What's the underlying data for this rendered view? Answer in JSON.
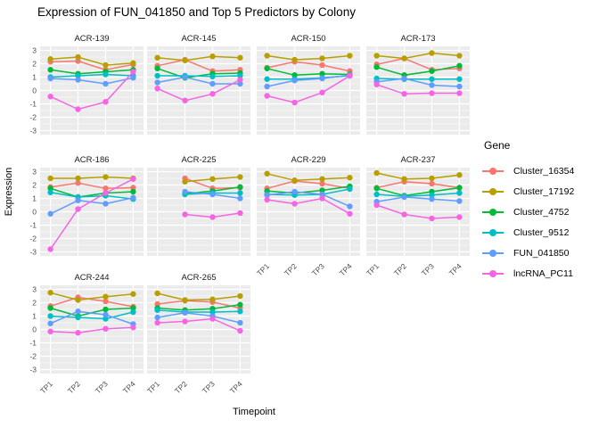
{
  "chart_data": {
    "type": "line",
    "title": "Expression of FUN_041850 and Top 5 Predictors by Colony",
    "xlabel": "Timepoint",
    "ylabel": "Expression",
    "legend_title": "Gene",
    "legend_position": "right",
    "x_categories": [
      "TP1",
      "TP2",
      "TP3",
      "TP4"
    ],
    "y_ticks": [
      3,
      2,
      1,
      0,
      -1,
      -2,
      -3
    ],
    "ylim": [
      -3.3,
      3.3
    ],
    "grid": "on",
    "panel_background": "#EBEBEB",
    "grid_color": "#FFFFFF",
    "tick_label_color": "#4D4D4D",
    "genes": [
      {
        "name": "Cluster_16354",
        "color": "#F8766D"
      },
      {
        "name": "Cluster_17192",
        "color": "#B79F00"
      },
      {
        "name": "Cluster_4752",
        "color": "#00BA38"
      },
      {
        "name": "Cluster_9512",
        "color": "#00BFC4"
      },
      {
        "name": "FUN_041850",
        "color": "#619CFF"
      },
      {
        "name": "lncRNA_PC11",
        "color": "#F564E3"
      }
    ],
    "facets": [
      {
        "colony": "ACR-139",
        "series": {
          "Cluster_16354": [
            2.15,
            2.2,
            1.55,
            1.95
          ],
          "Cluster_17192": [
            2.35,
            2.5,
            1.9,
            2.05
          ],
          "Cluster_4752": [
            1.55,
            1.25,
            1.4,
            1.55
          ],
          "Cluster_9512": [
            1.0,
            1.1,
            1.2,
            1.1
          ],
          "FUN_041850": [
            0.9,
            0.8,
            0.5,
            0.95
          ],
          "lncRNA_PC11": [
            -0.45,
            -1.4,
            -0.85,
            1.4
          ]
        }
      },
      {
        "colony": "ACR-145",
        "series": {
          "Cluster_16354": [
            1.85,
            2.3,
            1.45,
            1.55
          ],
          "Cluster_17192": [
            2.45,
            2.25,
            2.55,
            2.45
          ],
          "Cluster_4752": [
            1.65,
            0.95,
            1.25,
            1.3
          ],
          "Cluster_9512": [
            1.1,
            1.1,
            1.05,
            1.1
          ],
          "FUN_041850": [
            0.6,
            1.0,
            0.5,
            0.5
          ],
          "lncRNA_PC11": [
            0.15,
            -0.75,
            -0.25,
            0.8
          ]
        }
      },
      {
        "colony": "ACR-150",
        "series": {
          "Cluster_16354": [
            1.7,
            2.15,
            1.9,
            1.45
          ],
          "Cluster_17192": [
            2.6,
            2.3,
            2.4,
            2.6
          ],
          "Cluster_4752": [
            1.65,
            1.15,
            1.25,
            1.2
          ],
          "Cluster_9512": [
            0.85,
            0.85,
            0.95,
            1.1
          ],
          "FUN_041850": [
            0.3,
            0.75,
            0.9,
            1.15
          ],
          "lncRNA_PC11": [
            -0.4,
            -0.9,
            -0.15,
            1.1
          ]
        }
      },
      {
        "colony": "ACR-173",
        "series": {
          "Cluster_16354": [
            1.95,
            2.4,
            1.55,
            1.65
          ],
          "Cluster_17192": [
            2.6,
            2.4,
            2.8,
            2.6
          ],
          "Cluster_4752": [
            1.75,
            1.15,
            1.45,
            1.85
          ],
          "Cluster_9512": [
            0.9,
            0.85,
            0.85,
            0.85
          ],
          "FUN_041850": [
            0.65,
            0.9,
            0.4,
            0.3
          ],
          "lncRNA_PC11": [
            0.45,
            -0.25,
            -0.2,
            -0.2
          ]
        }
      },
      {
        "colony": "ACR-186",
        "series": {
          "Cluster_16354": [
            1.85,
            2.15,
            1.75,
            1.8
          ],
          "Cluster_17192": [
            2.5,
            2.5,
            2.6,
            2.5
          ],
          "Cluster_4752": [
            1.75,
            1.1,
            1.4,
            1.5
          ],
          "Cluster_9512": [
            1.45,
            1.1,
            1.2,
            0.95
          ],
          "FUN_041850": [
            -0.15,
            0.85,
            0.6,
            1.05
          ],
          "lncRNA_PC11": [
            -2.8,
            0.2,
            1.4,
            2.45
          ]
        }
      },
      {
        "colony": "ACR-225",
        "series": {
          "Cluster_16354": [
            null,
            2.5,
            1.75,
            1.8
          ],
          "Cluster_17192": [
            null,
            2.25,
            2.45,
            2.6
          ],
          "Cluster_4752": [
            null,
            1.35,
            1.55,
            1.85
          ],
          "Cluster_9512": [
            null,
            1.3,
            1.4,
            1.4
          ],
          "FUN_041850": [
            null,
            1.5,
            1.3,
            1.0
          ],
          "lncRNA_PC11": [
            null,
            -0.2,
            -0.4,
            -0.1
          ]
        }
      },
      {
        "colony": "ACR-229",
        "series": {
          "Cluster_16354": [
            1.75,
            2.3,
            2.1,
            1.75
          ],
          "Cluster_17192": [
            2.85,
            2.35,
            2.45,
            2.55
          ],
          "Cluster_4752": [
            1.55,
            1.4,
            1.6,
            1.9
          ],
          "Cluster_9512": [
            1.3,
            1.25,
            1.3,
            1.7
          ],
          "FUN_041850": [
            1.25,
            1.5,
            1.3,
            0.4
          ],
          "lncRNA_PC11": [
            0.9,
            0.6,
            1.0,
            -0.15
          ]
        }
      },
      {
        "colony": "ACR-237",
        "series": {
          "Cluster_16354": [
            1.8,
            2.25,
            2.1,
            1.8
          ],
          "Cluster_17192": [
            2.9,
            2.45,
            2.5,
            2.75
          ],
          "Cluster_4752": [
            1.75,
            1.2,
            1.5,
            1.8
          ],
          "Cluster_9512": [
            1.3,
            1.15,
            1.25,
            1.4
          ],
          "FUN_041850": [
            0.75,
            1.1,
            0.95,
            0.8
          ],
          "lncRNA_PC11": [
            0.5,
            -0.2,
            -0.5,
            -0.4
          ]
        }
      },
      {
        "colony": "ACR-244",
        "series": {
          "Cluster_16354": [
            1.75,
            2.4,
            2.1,
            1.7
          ],
          "Cluster_17192": [
            2.75,
            2.2,
            2.45,
            2.65
          ],
          "Cluster_4752": [
            1.6,
            1.0,
            1.5,
            1.6
          ],
          "Cluster_9512": [
            1.0,
            0.9,
            0.8,
            1.3
          ],
          "FUN_041850": [
            0.45,
            1.35,
            1.1,
            0.4
          ],
          "lncRNA_PC11": [
            -0.15,
            -0.25,
            0.05,
            0.15
          ]
        }
      },
      {
        "colony": "ACR-265",
        "series": {
          "Cluster_16354": [
            1.9,
            2.15,
            2.05,
            1.6
          ],
          "Cluster_17192": [
            2.7,
            2.2,
            2.25,
            2.5
          ],
          "Cluster_4752": [
            1.6,
            1.45,
            1.55,
            1.85
          ],
          "Cluster_9512": [
            1.45,
            1.3,
            1.3,
            1.35
          ],
          "FUN_041850": [
            0.9,
            1.25,
            1.0,
            0.5
          ],
          "lncRNA_PC11": [
            0.5,
            0.6,
            0.8,
            -0.1
          ]
        }
      }
    ]
  }
}
